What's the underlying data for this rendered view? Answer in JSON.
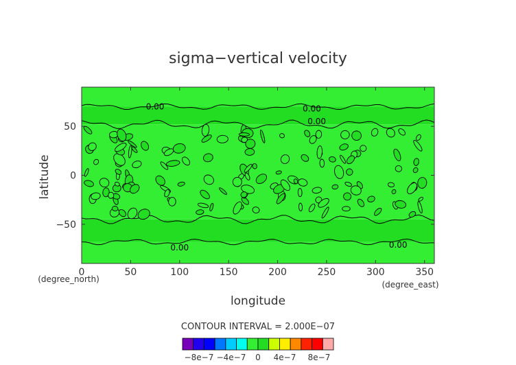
{
  "chart_data": {
    "type": "heatmap",
    "title": "sigma−vertical velocity",
    "xlabel": "longitude",
    "ylabel": "latitude",
    "x_unit": "(degree_east)",
    "y_unit": "(degree_north)",
    "xlim": [
      0,
      360
    ],
    "ylim": [
      -90,
      90
    ],
    "xticks": [
      "0",
      "50",
      "100",
      "150",
      "200",
      "250",
      "300",
      "350"
    ],
    "yticks": [
      "50",
      "0",
      "−50"
    ],
    "contour_interval_text": "CONTOUR INTERVAL = 2.000E−07",
    "contour_labels": [
      {
        "text": "0.00",
        "lon": 75,
        "lat": 70
      },
      {
        "text": "0.00",
        "lon": 235,
        "lat": 68
      },
      {
        "text": "0.00",
        "lon": 240,
        "lat": 55
      },
      {
        "text": "0.00",
        "lon": 100,
        "lat": -74
      },
      {
        "text": "0.00",
        "lon": 323,
        "lat": -71
      }
    ],
    "bands": [
      {
        "lat_from": 90,
        "lat_to": 70,
        "color": "#33ee33"
      },
      {
        "lat_from": 70,
        "lat_to": 52,
        "color": "#22dd22"
      },
      {
        "lat_from": 52,
        "lat_to": -45,
        "color": "#33ee33"
      },
      {
        "lat_from": -45,
        "lat_to": -68,
        "color": "#22dd22"
      },
      {
        "lat_from": -68,
        "lat_to": -90,
        "color": "#33ee33"
      }
    ],
    "colorbar": {
      "labels": [
        "−8e−7",
        "−4e−7",
        "0",
        "4e−7",
        "8e−7"
      ],
      "colors": [
        "#7700bb",
        "#2200ee",
        "#0000ff",
        "#0077ff",
        "#00ccff",
        "#00ffee",
        "#33ee33",
        "#22dd22",
        "#ccff00",
        "#ffee00",
        "#ff8800",
        "#ff2200",
        "#ff0000",
        "#ffaaaa"
      ]
    }
  }
}
